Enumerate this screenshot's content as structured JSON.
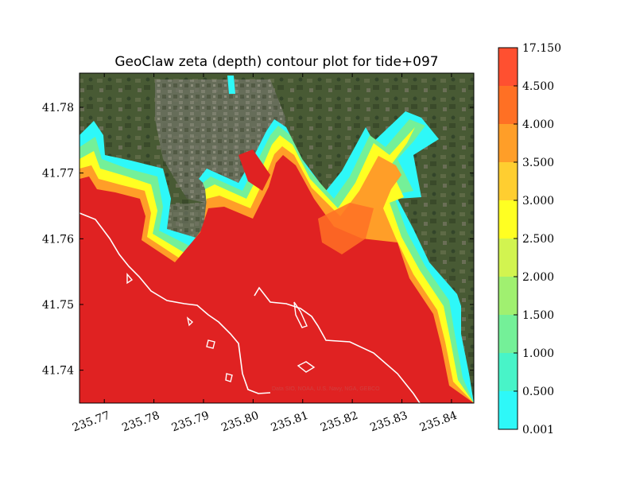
{
  "chart_data": {
    "type": "contour",
    "title": "GeoClaw zeta (depth) contour plot for tide+097",
    "xlabel": "",
    "ylabel": "",
    "xlim": [
      235.765,
      235.8445
    ],
    "ylim": [
      41.735,
      41.7852
    ],
    "x_ticks": [
      "235.77",
      "235.78",
      "235.79",
      "235.80",
      "235.81",
      "235.82",
      "235.83",
      "235.84"
    ],
    "y_ticks": [
      "41.74",
      "41.75",
      "41.76",
      "41.77",
      "41.78"
    ],
    "colorbar": {
      "levels": [
        "0.001",
        "0.500",
        "1.000",
        "1.500",
        "2.000",
        "2.500",
        "3.000",
        "3.500",
        "4.000",
        "4.500",
        "17.150"
      ],
      "colors": [
        "#2ef8f8",
        "#48f4c8",
        "#74f098",
        "#a0f070",
        "#d2f450",
        "#ffff22",
        "#ffce30",
        "#ff9e28",
        "#ff7024",
        "#ff5030"
      ]
    },
    "background": "satellite imagery",
    "credit": "Data SIO, NOAA, U.S. Navy, NGA, GEBCO",
    "colors": {
      "land": "#4a5636",
      "ocean_inundation": "#e02222",
      "shoreline": "#ffffff"
    }
  }
}
